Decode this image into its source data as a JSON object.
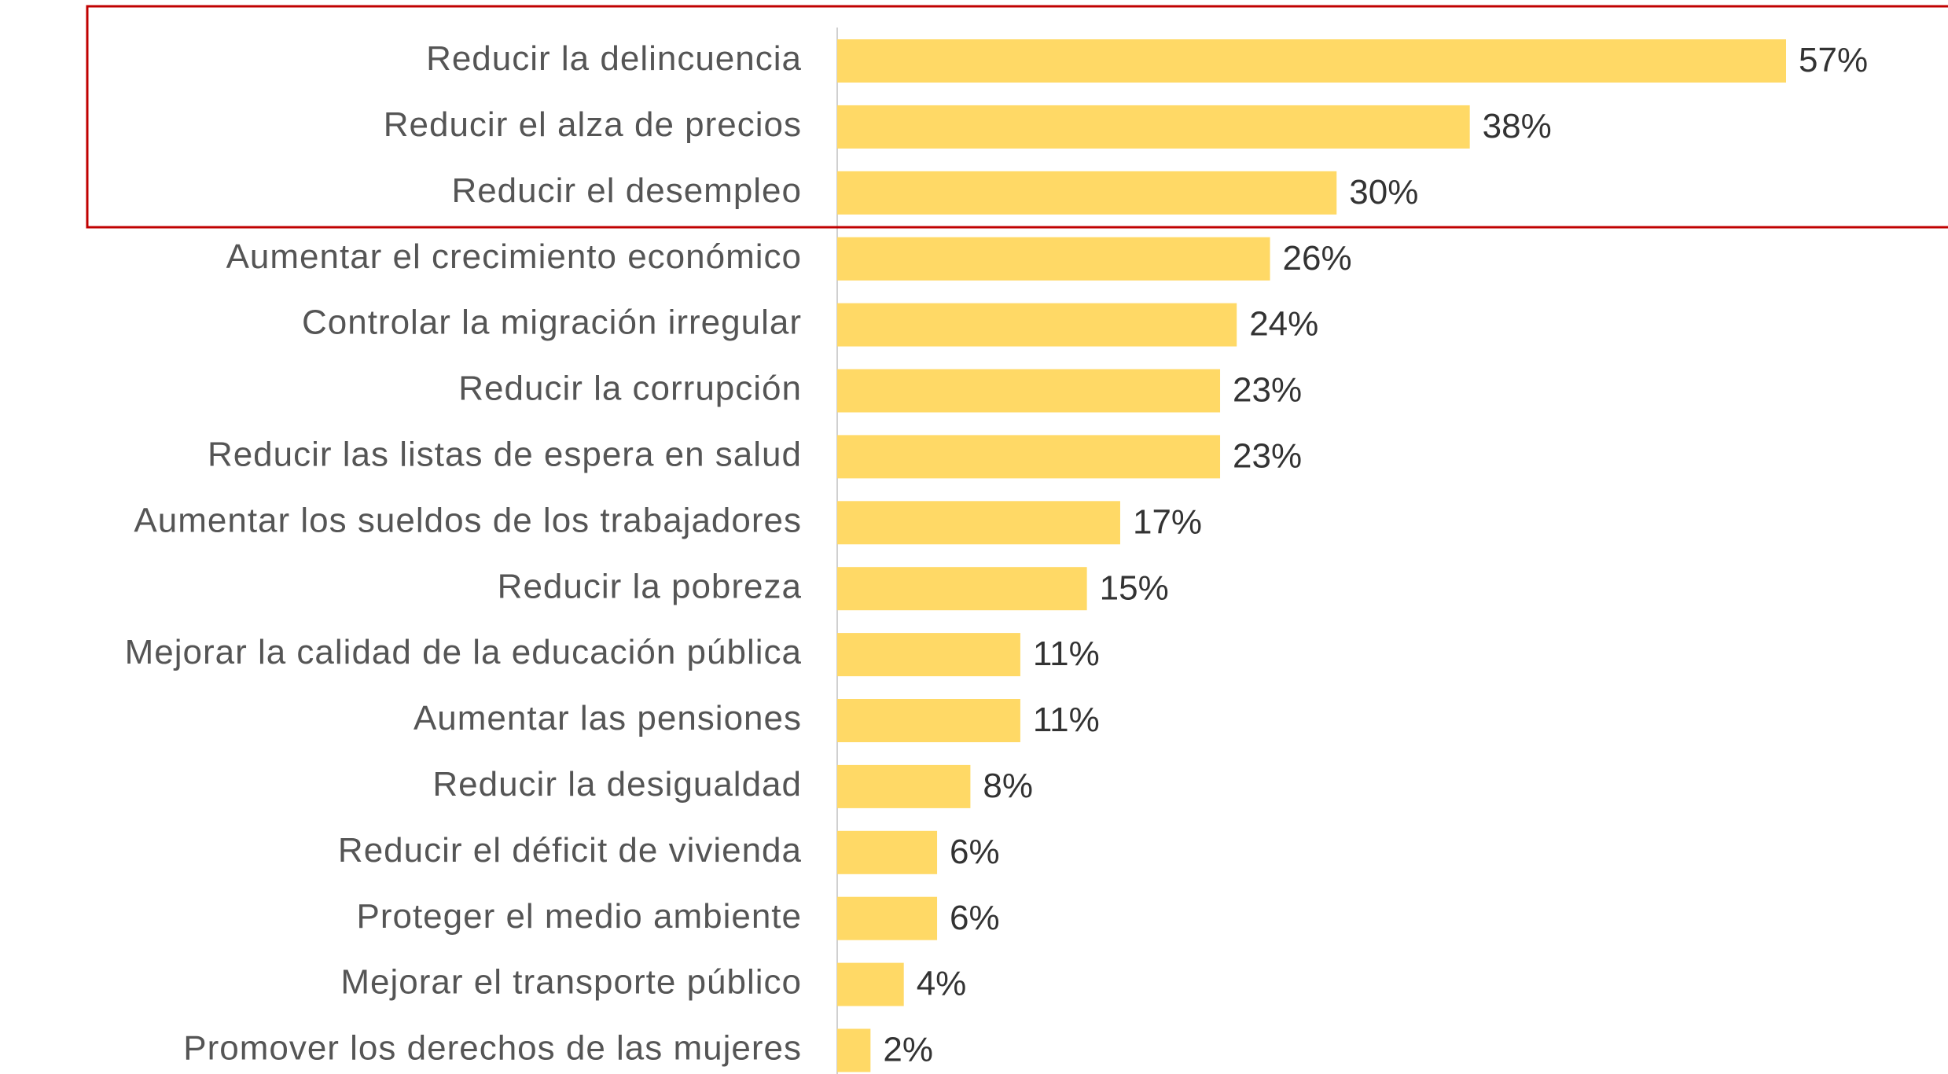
{
  "chart_data": {
    "type": "bar",
    "orientation": "horizontal",
    "categories": [
      "Reducir la delincuencia",
      "Reducir el alza de precios",
      "Reducir el desempleo",
      "Aumentar el crecimiento económico",
      "Controlar la migración irregular",
      "Reducir la corrupción",
      "Reducir las listas de espera en salud",
      "Aumentar los sueldos de los trabajadores",
      "Reducir la pobreza",
      "Mejorar la calidad de la educación pública",
      "Aumentar las pensiones",
      "Reducir la desigualdad",
      "Reducir el déficit de vivienda",
      "Proteger el medio ambiente",
      "Mejorar el transporte público",
      "Promover los derechos de las mujeres"
    ],
    "values": [
      57,
      38,
      30,
      26,
      24,
      23,
      23,
      17,
      15,
      11,
      11,
      8,
      6,
      6,
      4,
      2
    ],
    "value_labels": [
      "57%",
      "38%",
      "30%",
      "26%",
      "24%",
      "23%",
      "23%",
      "17%",
      "15%",
      "11%",
      "11%",
      "8%",
      "6%",
      "6%",
      "4%",
      "2%"
    ],
    "color": "#ffd966"
  }
}
